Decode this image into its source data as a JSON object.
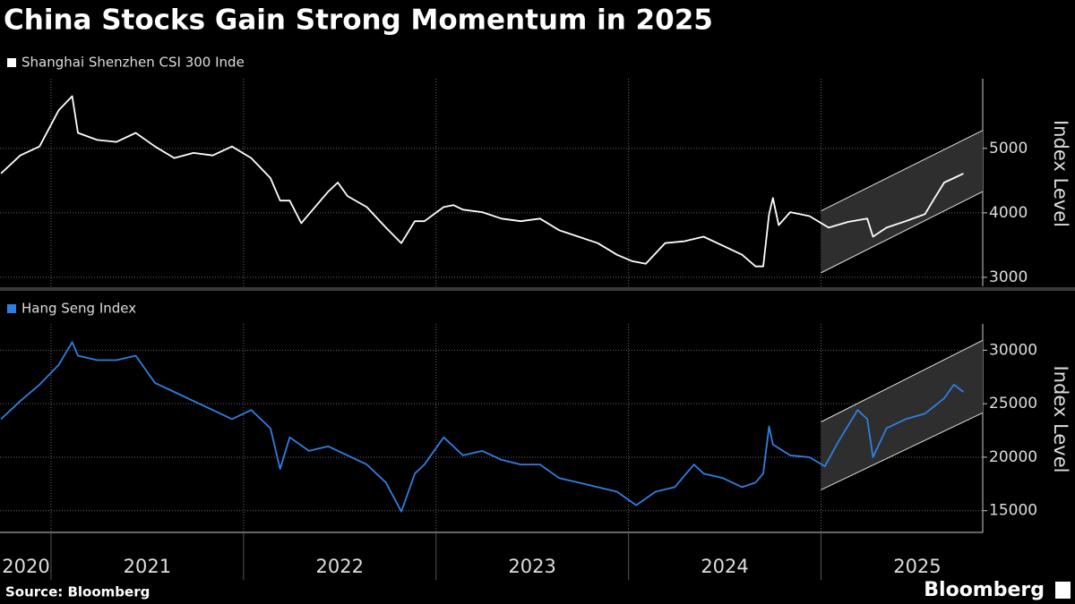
{
  "title": "China Stocks Gain Strong Momentum in 2025",
  "source": "Source: Bloomberg",
  "brand": "Bloomberg",
  "chart_data": [
    {
      "type": "line",
      "y_label": "Index Level",
      "xlim": [
        2020.735,
        2025.84
      ],
      "ylim": [
        2860,
        6080
      ],
      "yticks": [
        3000,
        4000,
        5000
      ],
      "xticks": [
        2021,
        2022,
        2023,
        2024,
        2025
      ],
      "grid": true,
      "series": [
        {
          "name": "Shanghai Shenzhen CSI 300 Inde",
          "color": "#ffffff",
          "x": [
            2020.74,
            2020.84,
            2020.94,
            2021.04,
            2021.11,
            2021.14,
            2021.24,
            2021.34,
            2021.44,
            2021.54,
            2021.64,
            2021.74,
            2021.84,
            2021.94,
            2022.04,
            2022.14,
            2022.19,
            2022.24,
            2022.3,
            2022.34,
            2022.44,
            2022.49,
            2022.54,
            2022.64,
            2022.74,
            2022.82,
            2022.89,
            2022.94,
            2023.04,
            2023.09,
            2023.14,
            2023.24,
            2023.34,
            2023.44,
            2023.54,
            2023.64,
            2023.74,
            2023.84,
            2023.94,
            2024.02,
            2024.09,
            2024.19,
            2024.29,
            2024.39,
            2024.49,
            2024.59,
            2024.66,
            2024.7,
            2024.73,
            2024.75,
            2024.78,
            2024.84,
            2024.94,
            2025.04,
            2025.14,
            2025.24,
            2025.27,
            2025.34,
            2025.44,
            2025.54,
            2025.59,
            2025.64,
            2025.69,
            2025.74
          ],
          "values": [
            4610,
            4890,
            5030,
            5590,
            5810,
            5240,
            5130,
            5100,
            5240,
            5030,
            4850,
            4930,
            4890,
            5030,
            4850,
            4540,
            4190,
            4190,
            3840,
            3980,
            4330,
            4470,
            4260,
            4090,
            3770,
            3530,
            3870,
            3870,
            4090,
            4120,
            4050,
            4010,
            3910,
            3870,
            3910,
            3730,
            3630,
            3530,
            3350,
            3250,
            3210,
            3530,
            3560,
            3630,
            3490,
            3350,
            3170,
            3170,
            3980,
            4230,
            3810,
            4010,
            3950,
            3770,
            3860,
            3910,
            3630,
            3770,
            3870,
            3980,
            4230,
            4470,
            4540,
            4610
          ]
        }
      ],
      "channel": {
        "x": [
          2025.0,
          2025.84
        ],
        "upper": [
          4030,
          5280
        ],
        "lower": [
          3070,
          4330
        ]
      }
    },
    {
      "type": "line",
      "y_label": "Index Level",
      "xlim": [
        2020.735,
        2025.84
      ],
      "ylim": [
        12970,
        32460
      ],
      "yticks": [
        15000,
        20000,
        25000,
        30000
      ],
      "xticks": [
        2021,
        2022,
        2023,
        2024,
        2025
      ],
      "xtick_labels": [
        {
          "value": 2020.87,
          "label": "2020"
        },
        {
          "value": 2021.5,
          "label": "2021"
        },
        {
          "value": 2022.5,
          "label": "2022"
        },
        {
          "value": 2023.5,
          "label": "2023"
        },
        {
          "value": 2024.5,
          "label": "2024"
        },
        {
          "value": 2025.5,
          "label": "2025"
        }
      ],
      "grid": true,
      "series": [
        {
          "name": "Hang Seng Index",
          "color": "#2f7fe0",
          "x": [
            2020.74,
            2020.84,
            2020.94,
            2021.04,
            2021.11,
            2021.14,
            2021.24,
            2021.34,
            2021.44,
            2021.54,
            2021.64,
            2021.74,
            2021.84,
            2021.94,
            2022.04,
            2022.14,
            2022.19,
            2022.24,
            2022.34,
            2022.44,
            2022.54,
            2022.64,
            2022.74,
            2022.82,
            2022.89,
            2022.94,
            2023.04,
            2023.09,
            2023.14,
            2023.24,
            2023.34,
            2023.44,
            2023.54,
            2023.64,
            2023.74,
            2023.84,
            2023.94,
            2024.04,
            2024.14,
            2024.24,
            2024.34,
            2024.39,
            2024.49,
            2024.59,
            2024.66,
            2024.7,
            2024.73,
            2024.75,
            2024.84,
            2024.94,
            2025.02,
            2025.09,
            2025.19,
            2025.24,
            2025.27,
            2025.34,
            2025.44,
            2025.54,
            2025.64,
            2025.69,
            2025.74
          ],
          "values": [
            23560,
            25250,
            26780,
            28640,
            30760,
            29490,
            29070,
            29070,
            29490,
            26950,
            26100,
            25250,
            24410,
            23560,
            24410,
            22710,
            18900,
            21860,
            20590,
            21020,
            20170,
            19320,
            17630,
            14920,
            18470,
            19320,
            21860,
            21020,
            20170,
            20590,
            19750,
            19320,
            19320,
            18050,
            17630,
            17200,
            16780,
            15510,
            16780,
            17200,
            19320,
            18470,
            18050,
            17200,
            17630,
            18470,
            22880,
            21190,
            20170,
            20000,
            19150,
            21440,
            24410,
            23560,
            20000,
            22710,
            23560,
            24070,
            25510,
            26780,
            26100
          ]
        }
      ],
      "channel": {
        "x": [
          2025.0,
          2025.84
        ],
        "upper": [
          23300,
          30930
        ],
        "lower": [
          16950,
          24150
        ]
      }
    }
  ]
}
